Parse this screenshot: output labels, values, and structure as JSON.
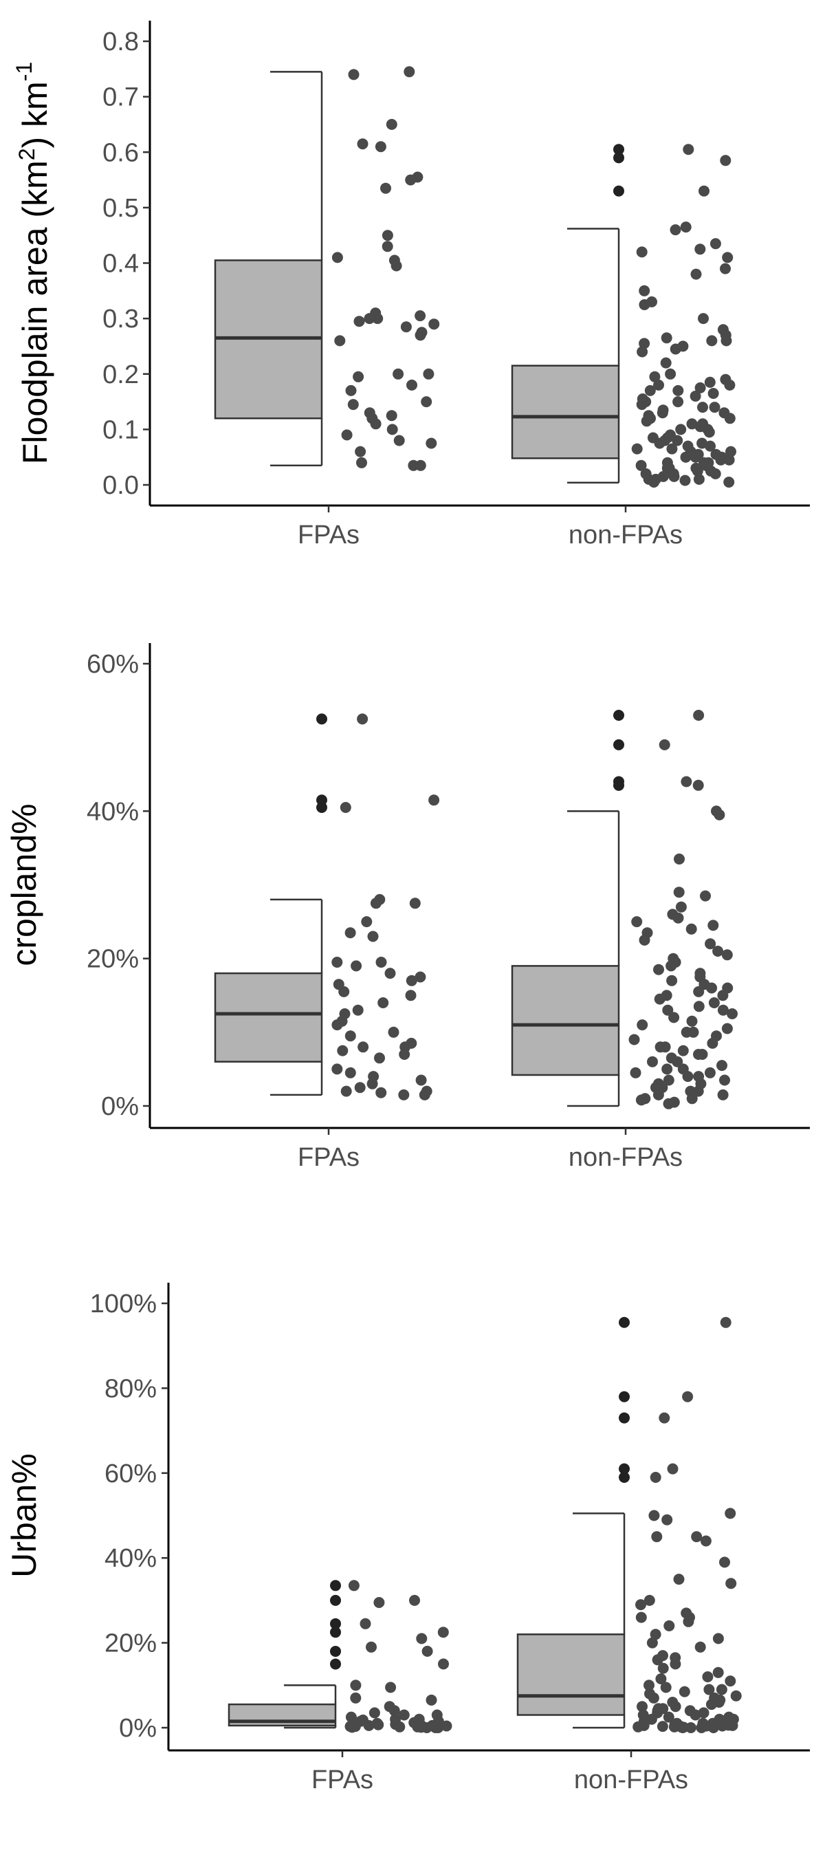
{
  "colors": {
    "box_fill": "#b3b3b3",
    "box_stroke": "#333333",
    "point": "#4a4a4a",
    "outlier": "#222222",
    "axis": "#000000"
  },
  "chart_data": [
    {
      "type": "boxplot",
      "ylabel": "Floodplain area (km",
      "ylabel_sup": "2",
      "ylabel_tail": ") km",
      "ylabel_sup2": "-1",
      "ylim": [
        0,
        0.8
      ],
      "yticks": [
        0.0,
        0.1,
        0.2,
        0.3,
        0.4,
        0.5,
        0.6,
        0.7,
        0.8
      ],
      "ytick_labels": [
        "0.0",
        "0.1",
        "0.2",
        "0.3",
        "0.4",
        "0.5",
        "0.6",
        "0.7",
        "0.8"
      ],
      "categories": [
        "FPAs",
        "non-FPAs"
      ],
      "boxes": [
        {
          "whisker_low": 0.035,
          "q1": 0.12,
          "median": 0.265,
          "q3": 0.405,
          "whisker_high": 0.745,
          "outliers": []
        },
        {
          "whisker_low": 0.004,
          "q1": 0.048,
          "median": 0.123,
          "q3": 0.215,
          "whisker_high": 0.462,
          "outliers": [
            0.605,
            0.59,
            0.53
          ]
        }
      ],
      "points": [
        [
          0.74,
          0.745,
          0.65,
          0.61,
          0.615,
          0.555,
          0.55,
          0.535,
          0.45,
          0.43,
          0.41,
          0.405,
          0.395,
          0.31,
          0.305,
          0.3,
          0.3,
          0.295,
          0.29,
          0.285,
          0.275,
          0.27,
          0.26,
          0.2,
          0.2,
          0.195,
          0.18,
          0.17,
          0.15,
          0.145,
          0.13,
          0.125,
          0.12,
          0.11,
          0.1,
          0.09,
          0.08,
          0.075,
          0.06,
          0.04,
          0.035,
          0.035
        ],
        [
          0.605,
          0.585,
          0.53,
          0.465,
          0.46,
          0.435,
          0.425,
          0.42,
          0.41,
          0.39,
          0.38,
          0.35,
          0.33,
          0.325,
          0.3,
          0.28,
          0.27,
          0.265,
          0.26,
          0.26,
          0.255,
          0.25,
          0.245,
          0.24,
          0.22,
          0.2,
          0.195,
          0.19,
          0.185,
          0.18,
          0.18,
          0.175,
          0.17,
          0.17,
          0.165,
          0.16,
          0.155,
          0.15,
          0.15,
          0.145,
          0.14,
          0.14,
          0.135,
          0.13,
          0.13,
          0.125,
          0.12,
          0.12,
          0.115,
          0.11,
          0.11,
          0.105,
          0.1,
          0.1,
          0.095,
          0.09,
          0.085,
          0.085,
          0.08,
          0.08,
          0.075,
          0.075,
          0.07,
          0.07,
          0.065,
          0.065,
          0.06,
          0.06,
          0.055,
          0.055,
          0.05,
          0.05,
          0.05,
          0.045,
          0.045,
          0.04,
          0.04,
          0.04,
          0.035,
          0.035,
          0.03,
          0.03,
          0.03,
          0.025,
          0.025,
          0.02,
          0.02,
          0.02,
          0.015,
          0.015,
          0.01,
          0.01,
          0.01,
          0.008,
          0.005,
          0.005
        ]
      ]
    },
    {
      "type": "boxplot",
      "ylabel": "cropland%",
      "ylim": [
        0,
        0.6
      ],
      "yticks": [
        0,
        0.2,
        0.4,
        0.6
      ],
      "ytick_labels": [
        "0%",
        "20%",
        "40%",
        "60%"
      ],
      "categories": [
        "FPAs",
        "non-FPAs"
      ],
      "boxes": [
        {
          "whisker_low": 0.015,
          "q1": 0.06,
          "median": 0.125,
          "q3": 0.18,
          "whisker_high": 0.28,
          "outliers": [
            0.525,
            0.415,
            0.405
          ]
        },
        {
          "whisker_low": 0.0,
          "q1": 0.042,
          "median": 0.11,
          "q3": 0.19,
          "whisker_high": 0.4,
          "outliers": [
            0.53,
            0.49,
            0.44,
            0.435
          ]
        }
      ],
      "points": [
        [
          0.525,
          0.415,
          0.405,
          0.28,
          0.275,
          0.275,
          0.25,
          0.235,
          0.23,
          0.195,
          0.195,
          0.19,
          0.18,
          0.175,
          0.17,
          0.165,
          0.155,
          0.15,
          0.14,
          0.13,
          0.125,
          0.115,
          0.11,
          0.1,
          0.095,
          0.085,
          0.08,
          0.08,
          0.075,
          0.07,
          0.065,
          0.05,
          0.045,
          0.04,
          0.035,
          0.03,
          0.025,
          0.02,
          0.02,
          0.018,
          0.015,
          0.015
        ],
        [
          0.53,
          0.49,
          0.44,
          0.435,
          0.4,
          0.395,
          0.335,
          0.29,
          0.285,
          0.27,
          0.26,
          0.255,
          0.25,
          0.245,
          0.24,
          0.235,
          0.225,
          0.22,
          0.21,
          0.205,
          0.2,
          0.195,
          0.19,
          0.185,
          0.18,
          0.175,
          0.17,
          0.165,
          0.16,
          0.16,
          0.155,
          0.15,
          0.15,
          0.145,
          0.14,
          0.135,
          0.13,
          0.13,
          0.125,
          0.12,
          0.115,
          0.11,
          0.105,
          0.1,
          0.1,
          0.095,
          0.09,
          0.085,
          0.08,
          0.08,
          0.075,
          0.07,
          0.07,
          0.065,
          0.06,
          0.06,
          0.055,
          0.05,
          0.05,
          0.045,
          0.045,
          0.04,
          0.04,
          0.035,
          0.035,
          0.03,
          0.03,
          0.025,
          0.025,
          0.02,
          0.02,
          0.015,
          0.015,
          0.01,
          0.01,
          0.008,
          0.005,
          0.003
        ]
      ]
    },
    {
      "type": "boxplot",
      "ylabel": "Urban%",
      "ylim": [
        0,
        1.0
      ],
      "yticks": [
        0,
        0.2,
        0.4,
        0.6,
        0.8,
        1.0
      ],
      "ytick_labels": [
        "0%",
        "20%",
        "40%",
        "60%",
        "80%",
        "100%"
      ],
      "categories": [
        "FPAs",
        "non-FPAs"
      ],
      "boxes": [
        {
          "whisker_low": 0.0,
          "q1": 0.005,
          "median": 0.015,
          "q3": 0.055,
          "whisker_high": 0.1,
          "outliers": [
            0.335,
            0.3,
            0.245,
            0.225,
            0.18,
            0.15
          ]
        },
        {
          "whisker_low": 0.0,
          "q1": 0.03,
          "median": 0.075,
          "q3": 0.22,
          "whisker_high": 0.505,
          "outliers": [
            0.955,
            0.78,
            0.73,
            0.61,
            0.59
          ]
        }
      ],
      "points": [
        [
          0.335,
          0.3,
          0.295,
          0.245,
          0.225,
          0.21,
          0.19,
          0.18,
          0.15,
          0.1,
          0.095,
          0.07,
          0.065,
          0.05,
          0.04,
          0.035,
          0.03,
          0.03,
          0.025,
          0.02,
          0.02,
          0.018,
          0.015,
          0.015,
          0.012,
          0.01,
          0.01,
          0.008,
          0.007,
          0.006,
          0.005,
          0.005,
          0.004,
          0.003,
          0.003,
          0.002,
          0.002,
          0.001,
          0.001,
          0.0,
          0.0,
          0.0
        ],
        [
          0.955,
          0.78,
          0.73,
          0.61,
          0.59,
          0.505,
          0.5,
          0.49,
          0.45,
          0.45,
          0.44,
          0.39,
          0.35,
          0.34,
          0.3,
          0.29,
          0.27,
          0.26,
          0.26,
          0.25,
          0.24,
          0.22,
          0.21,
          0.2,
          0.19,
          0.17,
          0.165,
          0.16,
          0.15,
          0.14,
          0.13,
          0.12,
          0.115,
          0.11,
          0.1,
          0.095,
          0.09,
          0.09,
          0.085,
          0.08,
          0.075,
          0.07,
          0.07,
          0.065,
          0.06,
          0.06,
          0.055,
          0.05,
          0.05,
          0.045,
          0.045,
          0.04,
          0.04,
          0.035,
          0.035,
          0.03,
          0.03,
          0.025,
          0.025,
          0.02,
          0.02,
          0.02,
          0.015,
          0.015,
          0.012,
          0.01,
          0.01,
          0.01,
          0.008,
          0.008,
          0.006,
          0.006,
          0.005,
          0.005,
          0.004,
          0.004,
          0.003,
          0.003,
          0.002,
          0.002,
          0.001,
          0.001,
          0.0,
          0.0,
          0.0,
          0.0
        ]
      ]
    }
  ]
}
